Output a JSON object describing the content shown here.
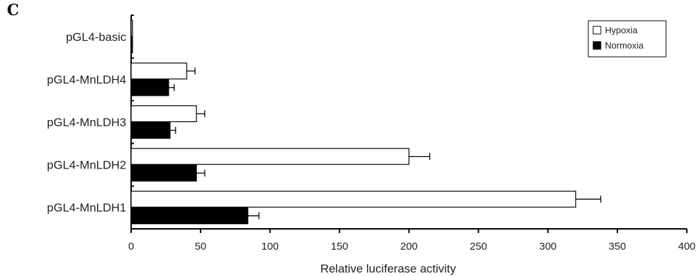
{
  "panel_label": "C",
  "chart_data": {
    "type": "bar",
    "orientation": "horizontal",
    "categories": [
      "pGL4-basic",
      "pGL4-MnLDH4",
      "pGL4-MnLDH3",
      "pGL4-MnLDH2",
      "pGL4-MnLDH1"
    ],
    "series": [
      {
        "name": "Hypoxia",
        "values": [
          1,
          40,
          47,
          200,
          320
        ],
        "errors": [
          0,
          6,
          6,
          15,
          18
        ]
      },
      {
        "name": "Normoxia",
        "values": [
          1,
          27,
          28,
          47,
          84
        ],
        "errors": [
          0,
          4,
          4,
          6,
          8
        ]
      }
    ],
    "xlabel": "Relative luciferase activity",
    "ylabel": "",
    "xlim": [
      0,
      400
    ],
    "xticks": [
      0,
      50,
      100,
      150,
      200,
      250,
      300,
      350,
      400
    ],
    "grid": false,
    "legend_position": "top-right",
    "colors": {
      "Hypoxia": "#ffffff",
      "Normoxia": "#000000",
      "outline": "#000000"
    }
  }
}
